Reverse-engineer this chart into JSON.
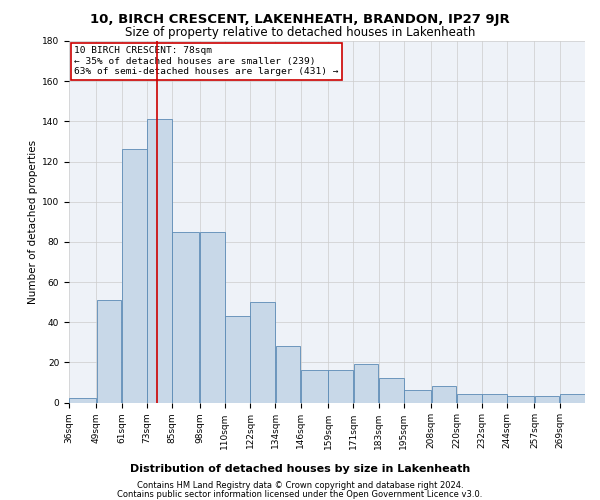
{
  "title": "10, BIRCH CRESCENT, LAKENHEATH, BRANDON, IP27 9JR",
  "subtitle": "Size of property relative to detached houses in Lakenheath",
  "xlabel": "Distribution of detached houses by size in Lakenheath",
  "ylabel": "Number of detached properties",
  "bar_color": "#c8d8e8",
  "bar_edge_color": "#5b8ab5",
  "background_color": "#eef2f8",
  "grid_color": "#cccccc",
  "vline_x": 78,
  "vline_color": "#cc0000",
  "annotation_text": "10 BIRCH CRESCENT: 78sqm\n← 35% of detached houses are smaller (239)\n63% of semi-detached houses are larger (431) →",
  "annotation_box_color": "#ffffff",
  "annotation_box_edge": "#cc0000",
  "bins": [
    36,
    49,
    61,
    73,
    85,
    98,
    110,
    122,
    134,
    146,
    159,
    171,
    183,
    195,
    208,
    220,
    232,
    244,
    257,
    269,
    281
  ],
  "values": [
    2,
    51,
    126,
    141,
    85,
    85,
    43,
    50,
    28,
    16,
    16,
    19,
    12,
    6,
    8,
    4,
    4,
    3,
    3,
    4
  ],
  "ylim": [
    0,
    180
  ],
  "yticks": [
    0,
    20,
    40,
    60,
    80,
    100,
    120,
    140,
    160,
    180
  ],
  "footer_line1": "Contains HM Land Registry data © Crown copyright and database right 2024.",
  "footer_line2": "Contains public sector information licensed under the Open Government Licence v3.0.",
  "title_fontsize": 9.5,
  "subtitle_fontsize": 8.5,
  "xlabel_fontsize": 8,
  "ylabel_fontsize": 7.5,
  "tick_fontsize": 6.5,
  "annotation_fontsize": 6.8,
  "footer_fontsize": 6.0
}
